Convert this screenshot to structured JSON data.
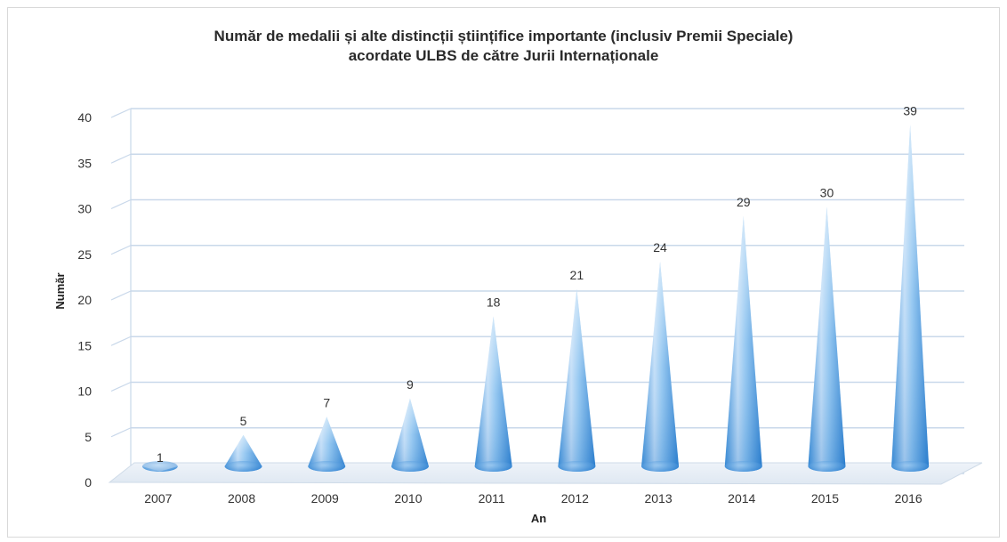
{
  "chart_data": {
    "type": "bar",
    "title_lines": [
      "Număr de medalii și alte distincții științifice importante (inclusiv Premii Speciale)",
      "acordate ULBS de către Jurii Internaționale"
    ],
    "xlabel": "An",
    "ylabel": "Număr",
    "categories": [
      "2007",
      "2008",
      "2009",
      "2010",
      "2011",
      "2012",
      "2013",
      "2014",
      "2015",
      "2016"
    ],
    "values": [
      1,
      5,
      7,
      9,
      18,
      21,
      24,
      29,
      30,
      39
    ],
    "ylim": [
      0,
      40
    ],
    "yticks": [
      0,
      5,
      10,
      15,
      20,
      25,
      30,
      35,
      40
    ],
    "grid": true,
    "legend": "none",
    "bar_shape": "cone",
    "colors": {
      "cone_light": "#dcecfb",
      "cone_mid": "#6ab0ea",
      "cone_dark": "#2e86d6",
      "grid": "#c9d8ea",
      "floor": "#e6eef7"
    }
  }
}
